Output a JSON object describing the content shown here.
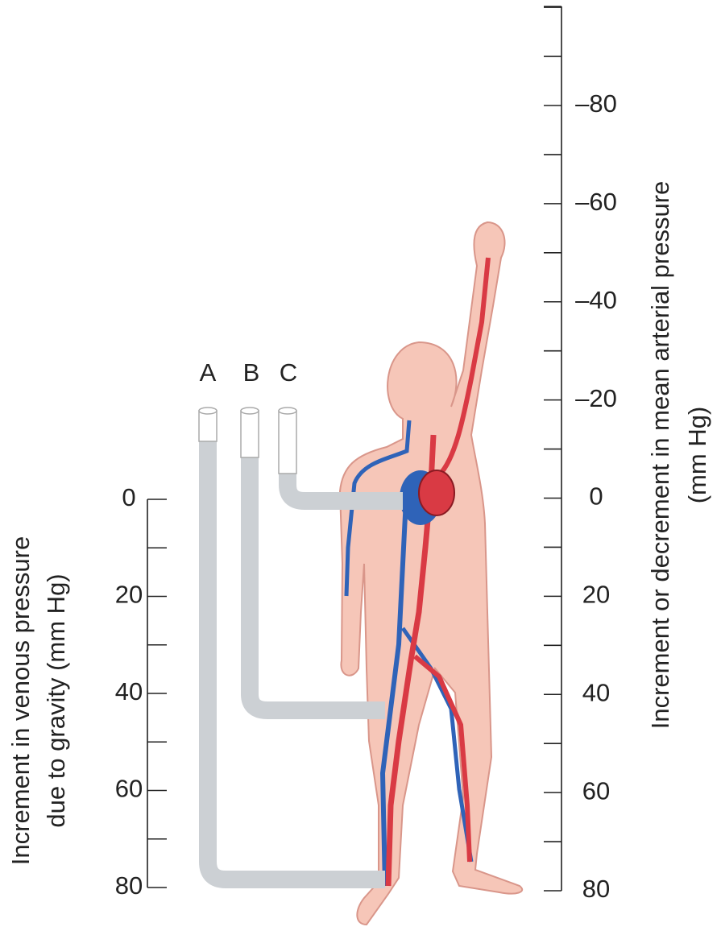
{
  "left_axis": {
    "label_lines": [
      "Increment in venous pressure",
      "due to gravity (mm Hg)"
    ],
    "ticks": [
      "0",
      "20",
      "40",
      "60",
      "80"
    ]
  },
  "right_axis": {
    "label_lines": [
      "Increment or decrement in mean arterial pressure",
      "(mm Hg)"
    ],
    "ticks": [
      "–80",
      "–60",
      "–40",
      "–20",
      "0",
      "20",
      "40",
      "60",
      "80"
    ]
  },
  "tubes": [
    {
      "label": "A"
    },
    {
      "label": "B"
    },
    {
      "label": "C"
    }
  ]
}
